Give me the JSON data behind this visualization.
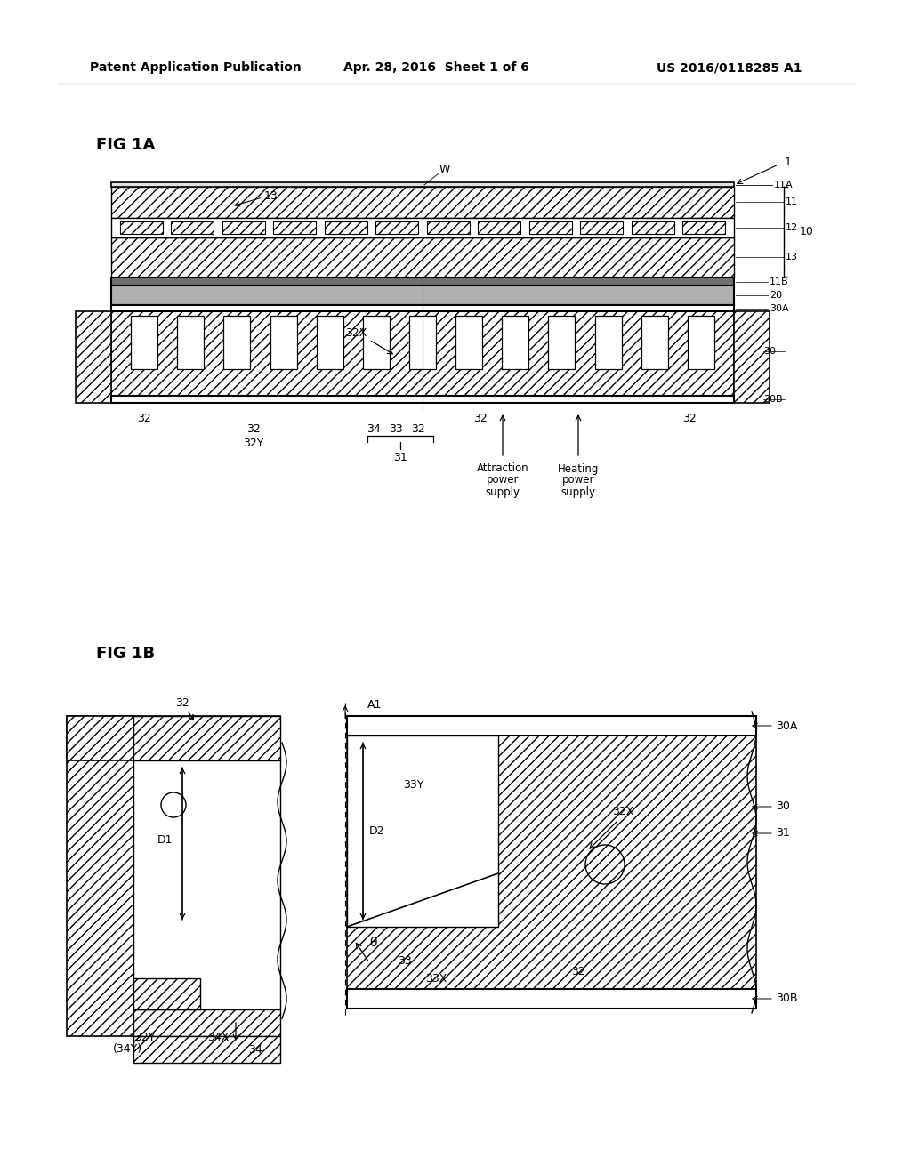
{
  "bg_color": "#ffffff",
  "header_left": "Patent Application Publication",
  "header_mid": "Apr. 28, 2016  Sheet 1 of 6",
  "header_right": "US 2016/0118285 A1",
  "fig1a_label": "FIG 1A",
  "fig1b_label": "FIG 1B"
}
